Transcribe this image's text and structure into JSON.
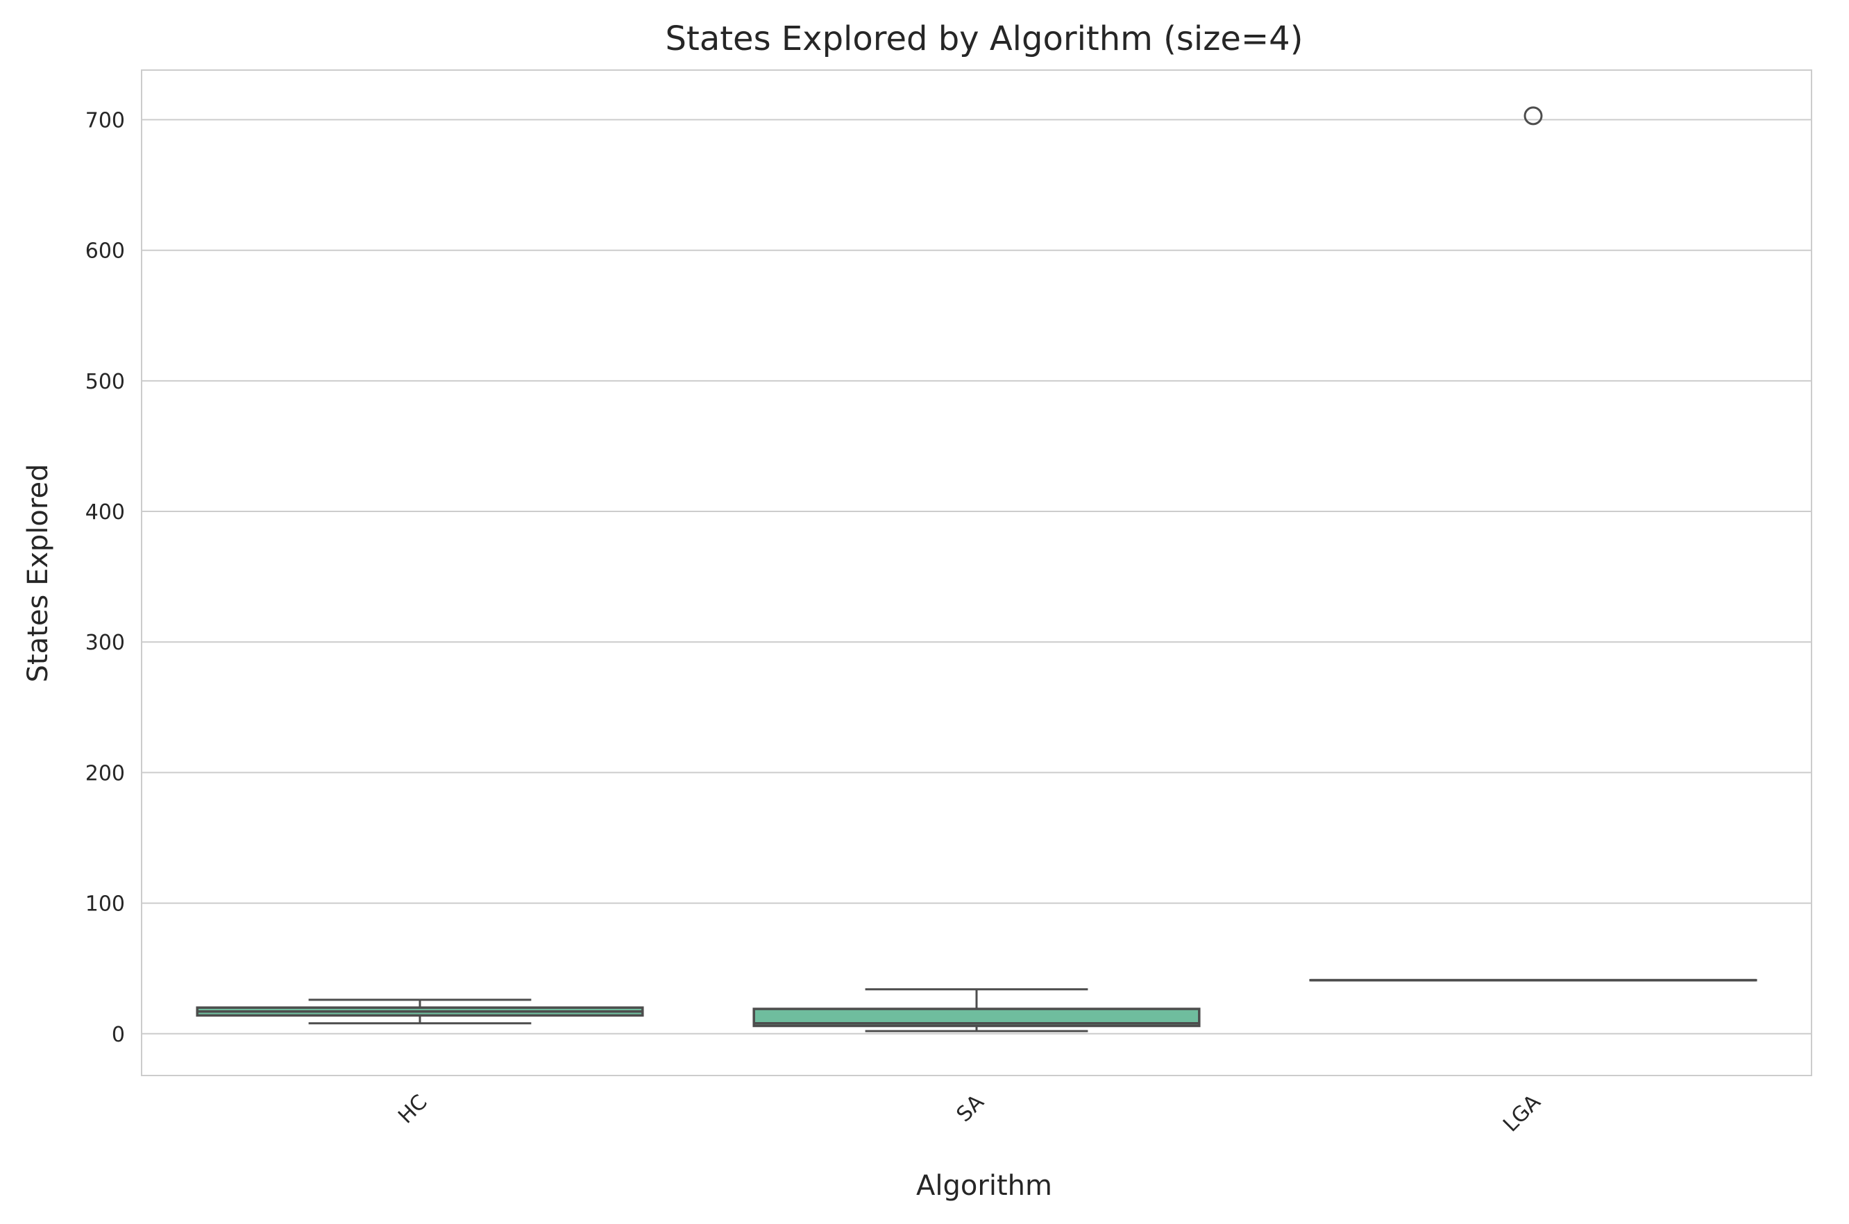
{
  "chart_data": {
    "type": "box",
    "title": "States Explored by Algorithm (size=4)",
    "xlabel": "Algorithm",
    "ylabel": "States Explored",
    "categories": [
      "HC",
      "SA",
      "LGA"
    ],
    "ylim": [
      -32,
      738
    ],
    "yticks": [
      0,
      100,
      200,
      300,
      400,
      500,
      600,
      700
    ],
    "grid": "y",
    "box_color": "#6fbd9e",
    "line_color": "#4d4d4d",
    "boxes": [
      {
        "category": "HC",
        "whisker_low": 8,
        "q1": 14,
        "median": 17,
        "q3": 20,
        "whisker_high": 26,
        "outliers": []
      },
      {
        "category": "SA",
        "whisker_low": 2,
        "q1": 6,
        "median": 8,
        "q3": 19,
        "whisker_high": 34,
        "outliers": []
      },
      {
        "category": "LGA",
        "whisker_low": 41,
        "q1": 41,
        "median": 41,
        "q3": 41,
        "whisker_high": 41,
        "outliers": [
          703
        ]
      }
    ]
  }
}
